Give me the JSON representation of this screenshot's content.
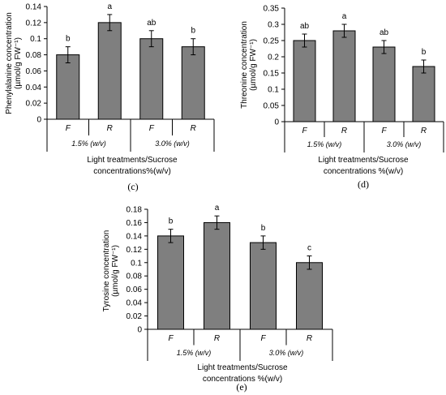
{
  "chart_data": [
    {
      "type": "bar",
      "panel_label": "(c)",
      "categories": [
        "F",
        "R",
        "F",
        "R"
      ],
      "groups": [
        "1.5% (w/v)",
        "3.0% (w/v)"
      ],
      "values": [
        0.08,
        0.12,
        0.1,
        0.09
      ],
      "errors": [
        0.01,
        0.01,
        0.01,
        0.01
      ],
      "significance": [
        "b",
        "a",
        "ab",
        "b"
      ],
      "ylabel": "Phenylalanine concentration (µmol/g FW⁻¹)",
      "xlabel": "Light treatments/Sucrose concentrations%(w/v)",
      "ylim": [
        0,
        0.14
      ],
      "yticks": [
        "0",
        "0.02",
        "0.04",
        "0.06",
        "0.08",
        "0.1",
        "0.12",
        "0.14"
      ],
      "grid": false
    },
    {
      "type": "bar",
      "panel_label": "(d)",
      "categories": [
        "F",
        "R",
        "F",
        "R"
      ],
      "groups": [
        "1.5% (w/v)",
        "3.0% (w/v)"
      ],
      "values": [
        0.25,
        0.28,
        0.23,
        0.17
      ],
      "errors": [
        0.02,
        0.02,
        0.02,
        0.02
      ],
      "significance": [
        "ab",
        "a",
        "ab",
        "b"
      ],
      "ylabel": "Threonine concentration (µmol/g FW⁻¹)",
      "xlabel": "Light treatments/Sucrose concentrations %(w/v)",
      "ylim": [
        0,
        0.35
      ],
      "yticks": [
        "0",
        "0.05",
        "0.1",
        "0.15",
        "0.2",
        "0.25",
        "0.3",
        "0.35"
      ],
      "grid": false
    },
    {
      "type": "bar",
      "panel_label": "(e)",
      "categories": [
        "F",
        "R",
        "F",
        "R"
      ],
      "groups": [
        "1.5% (w/v)",
        "3.0% (w/v)"
      ],
      "values": [
        0.14,
        0.16,
        0.13,
        0.1
      ],
      "errors": [
        0.01,
        0.01,
        0.01,
        0.01
      ],
      "significance": [
        "b",
        "a",
        "b",
        "c"
      ],
      "ylabel": "Tyrosine concentration (µmol/g FW⁻¹)",
      "xlabel": "Light treatments/Sucrose concentrations %(w/v)",
      "ylim": [
        0,
        0.18
      ],
      "yticks": [
        "0",
        "0.02",
        "0.04",
        "0.06",
        "0.08",
        "0.1",
        "0.12",
        "0.14",
        "0.16",
        "0.18"
      ],
      "grid": false
    }
  ],
  "colors": {
    "bar_fill": "#7f7f7f",
    "bar_stroke": "#000000",
    "axis": "#000000"
  }
}
